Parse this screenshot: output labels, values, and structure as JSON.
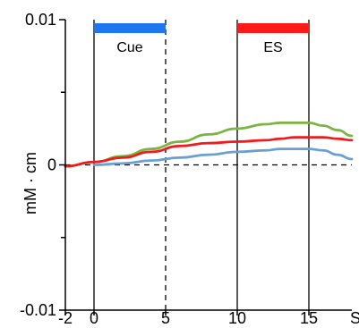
{
  "chart_data": {
    "type": "line",
    "title": "",
    "xlabel": "",
    "x_unit_label": "S",
    "ylabel": "mM · cm",
    "xlim": [
      -2,
      18
    ],
    "ylim": [
      -0.01,
      0.01
    ],
    "x_ticks": [
      {
        "value": -2,
        "label": "-2"
      },
      {
        "value": 0,
        "label": "0"
      },
      {
        "value": 5,
        "label": "5"
      },
      {
        "value": 10,
        "label": "10"
      },
      {
        "value": 15,
        "label": "15"
      }
    ],
    "y_ticks": [
      {
        "value": 0.01,
        "label": "0.01"
      },
      {
        "value": 0,
        "label": "0"
      },
      {
        "value": -0.01,
        "label": "-0.01"
      }
    ],
    "y_minor_ticks": [
      0.005,
      -0.005
    ],
    "zero_line": "dashed",
    "vertical_markers": [
      {
        "x": 0,
        "style": "solid"
      },
      {
        "x": 5,
        "style": "dashed"
      },
      {
        "x": 10,
        "style": "solid"
      },
      {
        "x": 15,
        "style": "solid"
      }
    ],
    "event_bars": [
      {
        "label": "Cue",
        "start": 0,
        "end": 5,
        "color": "#1f77f0"
      },
      {
        "label": "ES",
        "start": 10,
        "end": 15,
        "color": "#ff1a1a"
      }
    ],
    "series": [
      {
        "color": "#7cb342",
        "x": [
          -2,
          0,
          2,
          4,
          6,
          8,
          10,
          12,
          13,
          14,
          15,
          16,
          17,
          18
        ],
        "y": [
          -0.0001,
          0.0002,
          0.0006,
          0.0011,
          0.0016,
          0.0021,
          0.0025,
          0.0028,
          0.0029,
          0.0029,
          0.0029,
          0.0027,
          0.0024,
          0.002
        ]
      },
      {
        "color": "#ee1c1c",
        "x": [
          -2,
          0,
          2,
          4,
          6,
          8,
          10,
          12,
          13,
          14,
          15,
          16,
          17,
          18
        ],
        "y": [
          -0.0001,
          0.0002,
          0.0005,
          0.0009,
          0.0013,
          0.0015,
          0.0016,
          0.0017,
          0.0018,
          0.0019,
          0.0019,
          0.0019,
          0.0018,
          0.0017
        ]
      },
      {
        "color": "#6a9fd4",
        "x": [
          0,
          2,
          4,
          6,
          8,
          10,
          12,
          13,
          14,
          15,
          16,
          17,
          18
        ],
        "y": [
          0,
          0.0001,
          0.0003,
          0.0005,
          0.0007,
          0.0009,
          0.001,
          0.0011,
          0.0011,
          0.0011,
          0.001,
          0.0007,
          0.0004
        ]
      }
    ]
  }
}
